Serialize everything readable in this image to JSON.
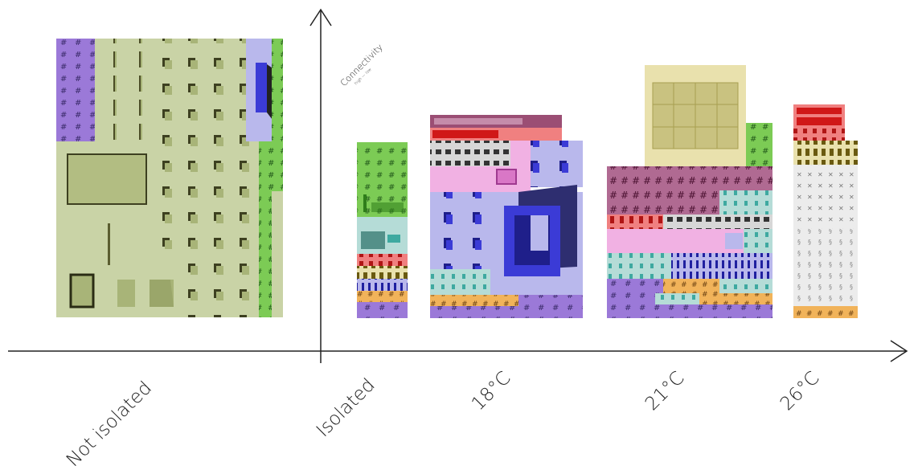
{
  "axes": {
    "y_label": "Connectivity",
    "y_sub_label": "high — low"
  },
  "categories": [
    {
      "key": "not_isolated",
      "label": "Not isolated"
    },
    {
      "key": "isolated",
      "label": "Isolated"
    },
    {
      "key": "c18",
      "label": "18°C"
    },
    {
      "key": "c21",
      "label": "21°C"
    },
    {
      "key": "c26",
      "label": "26°C"
    }
  ],
  "colors": {
    "olive": "#c9d3a6",
    "olive_dark": "#a8b478",
    "lavender": "#b9b8ec",
    "purple": "#9066cc",
    "green": "#79c653",
    "pink": "#f1b1e3",
    "teal": "#b5dcd7",
    "red": "#e64545",
    "yellow": "#e9e1ad",
    "orange": "#f1b35a",
    "blue": "#3b3bd6",
    "grey": "#e2e2e2",
    "maroon": "#9b4e74"
  }
}
